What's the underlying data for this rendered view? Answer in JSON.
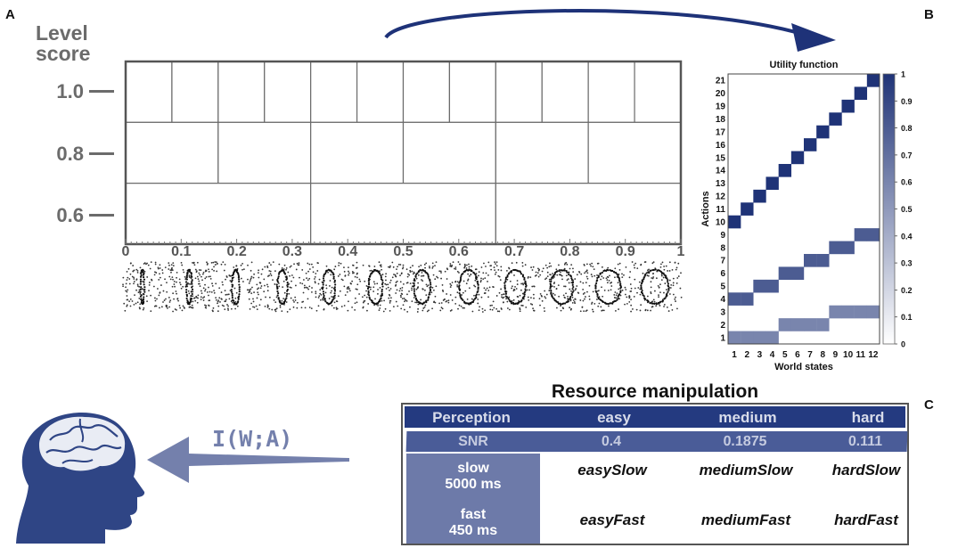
{
  "panel_labels": {
    "a": "A",
    "b": "B",
    "c": "C"
  },
  "panel_a": {
    "title_line1": "Level",
    "title_line2": "score",
    "y_ticks": [
      "1.0",
      "0.8",
      "0.6"
    ],
    "x_ticks": [
      "0",
      "0.1",
      "0.2",
      "0.3",
      "0.4",
      "0.5",
      "0.6",
      "0.7",
      "0.8",
      "0.9",
      "1"
    ],
    "level_partitions": {
      "1.0": 12,
      "0.8": 6,
      "0.6": 3
    },
    "stimulus_count": 12
  },
  "colors": {
    "dark_blue": "#243a80",
    "mid_blue": "#4a5c98",
    "light_blue": "#6d7aa9",
    "gray_text": "#6b6b6b",
    "arrow_blue": "#1e3278"
  },
  "chart_data": {
    "type": "heatmap",
    "title": "Utility function",
    "xlabel": "World states",
    "ylabel": "Actions",
    "x_categories": [
      "1",
      "2",
      "3",
      "4",
      "5",
      "6",
      "7",
      "8",
      "9",
      "10",
      "11",
      "12"
    ],
    "y_categories": [
      "1",
      "2",
      "3",
      "4",
      "5",
      "6",
      "7",
      "8",
      "9",
      "10",
      "11",
      "12",
      "13",
      "14",
      "15",
      "16",
      "17",
      "18",
      "19",
      "20",
      "21"
    ],
    "colorbar_ticks": [
      "0",
      "0.1",
      "0.2",
      "0.3",
      "0.4",
      "0.5",
      "0.6",
      "0.7",
      "0.8",
      "0.9",
      "1"
    ],
    "clim": [
      0,
      1
    ],
    "cells": [
      {
        "action": 1,
        "states": [
          1,
          2,
          3,
          4
        ],
        "value": 0.6
      },
      {
        "action": 2,
        "states": [
          5,
          6,
          7,
          8
        ],
        "value": 0.6
      },
      {
        "action": 3,
        "states": [
          9,
          10,
          11,
          12
        ],
        "value": 0.6
      },
      {
        "action": 4,
        "states": [
          1,
          2
        ],
        "value": 0.8
      },
      {
        "action": 5,
        "states": [
          3,
          4
        ],
        "value": 0.8
      },
      {
        "action": 6,
        "states": [
          5,
          6
        ],
        "value": 0.8
      },
      {
        "action": 7,
        "states": [
          7,
          8
        ],
        "value": 0.8
      },
      {
        "action": 8,
        "states": [
          9,
          10
        ],
        "value": 0.8
      },
      {
        "action": 9,
        "states": [
          11,
          12
        ],
        "value": 0.8
      },
      {
        "action": 10,
        "states": [
          1
        ],
        "value": 1
      },
      {
        "action": 11,
        "states": [
          2
        ],
        "value": 1
      },
      {
        "action": 12,
        "states": [
          3
        ],
        "value": 1
      },
      {
        "action": 13,
        "states": [
          4
        ],
        "value": 1
      },
      {
        "action": 14,
        "states": [
          5
        ],
        "value": 1
      },
      {
        "action": 15,
        "states": [
          6
        ],
        "value": 1
      },
      {
        "action": 16,
        "states": [
          7
        ],
        "value": 1
      },
      {
        "action": 17,
        "states": [
          8
        ],
        "value": 1
      },
      {
        "action": 18,
        "states": [
          9
        ],
        "value": 1
      },
      {
        "action": 19,
        "states": [
          10
        ],
        "value": 1
      },
      {
        "action": 20,
        "states": [
          11
        ],
        "value": 1
      },
      {
        "action": 21,
        "states": [
          12
        ],
        "value": 1
      }
    ]
  },
  "resource": {
    "title": "Resource manipulation",
    "header": {
      "perception": "Perception",
      "easy": "easy",
      "medium": "medium",
      "hard": "hard"
    },
    "snr": {
      "label": "SNR",
      "easy": "0.4",
      "medium": "0.1875",
      "hard": "0.111"
    },
    "slow": {
      "label": "slow",
      "time": "5000 ms",
      "easy": "easySlow",
      "medium": "mediumSlow",
      "hard": "hardSlow"
    },
    "fast": {
      "label": "fast",
      "time": "450 ms",
      "easy": "easyFast",
      "medium": "mediumFast",
      "hard": "hardFast"
    }
  },
  "mutual_information": "I(W;A)"
}
